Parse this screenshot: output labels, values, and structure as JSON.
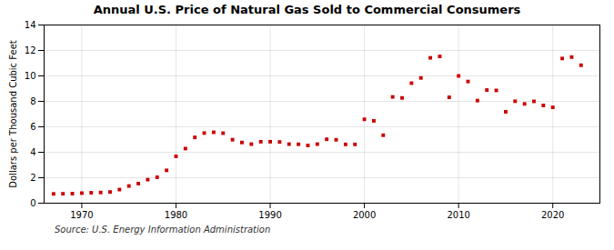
{
  "chart_data": {
    "type": "scatter",
    "title": "Annual U.S. Price of Natural Gas Sold to Commercial Consumers",
    "ylabel": "Dollars per Thousand Cubic Feet",
    "annotation": "Source: U.S. Energy Information Administration",
    "x": [
      1967,
      1968,
      1969,
      1970,
      1971,
      1972,
      1973,
      1974,
      1975,
      1976,
      1977,
      1978,
      1979,
      1980,
      1981,
      1982,
      1983,
      1984,
      1985,
      1986,
      1987,
      1988,
      1989,
      1990,
      1991,
      1992,
      1993,
      1994,
      1995,
      1996,
      1997,
      1998,
      1999,
      2000,
      2001,
      2002,
      2003,
      2004,
      2005,
      2006,
      2007,
      2008,
      2009,
      2010,
      2011,
      2012,
      2013,
      2014,
      2015,
      2016,
      2017,
      2018,
      2019,
      2020,
      2021,
      2022,
      2023
    ],
    "values": [
      0.73,
      0.74,
      0.75,
      0.79,
      0.82,
      0.84,
      0.88,
      1.07,
      1.35,
      1.54,
      1.85,
      2.04,
      2.58,
      3.68,
      4.29,
      5.17,
      5.51,
      5.57,
      5.5,
      4.99,
      4.77,
      4.64,
      4.83,
      4.83,
      4.81,
      4.64,
      4.63,
      4.54,
      4.64,
      5.02,
      4.98,
      4.62,
      4.62,
      6.59,
      6.47,
      5.34,
      8.35,
      8.27,
      9.43,
      9.84,
      11.42,
      11.53,
      8.32,
      10.0,
      9.56,
      8.06,
      8.89,
      8.86,
      7.18,
      8.01,
      7.8,
      8.0,
      7.68,
      7.53,
      11.37,
      11.48,
      10.84
    ],
    "color": "#cc0000",
    "marker": "square",
    "xlim": [
      1966,
      2025
    ],
    "xticks": [
      1970,
      1980,
      1990,
      2000,
      2010,
      2020
    ],
    "ylim": [
      0,
      14
    ],
    "yticks": [
      0,
      2,
      4,
      6,
      8,
      10,
      12,
      14
    ],
    "grid": true
  }
}
